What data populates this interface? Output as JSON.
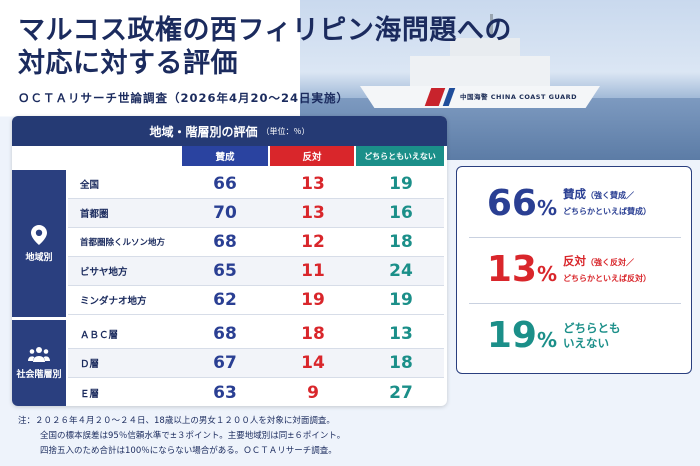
{
  "header": {
    "title_line1": "マルコス政権の西フィリピン海問題への",
    "title_line2": "対応に対する評価",
    "subtitle": "ＯＣＴＡリサーチ世論調査（2026年4月20〜24日実施）"
  },
  "photo": {
    "ship_text": "中国海警  CHINA COAST GUARD"
  },
  "chart_data": {
    "type": "table",
    "title": "地域・階層別の評価",
    "unit": "（単位：％）",
    "columns": [
      "賛成",
      "反対",
      "どちらともいえない"
    ],
    "groups": [
      {
        "name": "地域別",
        "rows": [
          {
            "label": "全国",
            "values": [
              66,
              13,
              19
            ]
          },
          {
            "label": "首都圏",
            "values": [
              70,
              13,
              16
            ]
          },
          {
            "label": "首都圏除くルソン地方",
            "values": [
              68,
              12,
              18
            ]
          },
          {
            "label": "ビサヤ地方",
            "values": [
              65,
              11,
              24
            ]
          },
          {
            "label": "ミンダナオ地方",
            "values": [
              62,
              19,
              19
            ]
          }
        ]
      },
      {
        "name": "社会階層別",
        "rows": [
          {
            "label": "ＡＢＣ層",
            "values": [
              68,
              18,
              13
            ]
          },
          {
            "label": "Ｄ層",
            "values": [
              67,
              14,
              18
            ]
          },
          {
            "label": "Ｅ層",
            "values": [
              63,
              9,
              27
            ]
          }
        ]
      }
    ]
  },
  "summary": [
    {
      "value": "66",
      "pct": "%",
      "label": "賛成",
      "note": "（強く賛成／",
      "note2": "どちらかといえば賛成）",
      "color": "#2a3f93"
    },
    {
      "value": "13",
      "pct": "%",
      "label": "反対",
      "note": "（強く反対／",
      "note2": "どちらかといえば反対）",
      "color": "#d9262b"
    },
    {
      "value": "19",
      "pct": "%",
      "label": "どちらとも",
      "note": "",
      "note2": "いえない",
      "color": "#1b8f89"
    }
  ],
  "footnote": {
    "line1": "注：２０２６年４月２０〜２４日、18歳以上の男女１２００人を対象に対面調査。",
    "line2": "全国の標本誤差は95％信頼水準で±３ポイント。主要地域別は同±６ポイント。",
    "line3": "四捨五入のため合計は100％にならない場合がある。ＯＣＴＡリサーチ調査。"
  }
}
